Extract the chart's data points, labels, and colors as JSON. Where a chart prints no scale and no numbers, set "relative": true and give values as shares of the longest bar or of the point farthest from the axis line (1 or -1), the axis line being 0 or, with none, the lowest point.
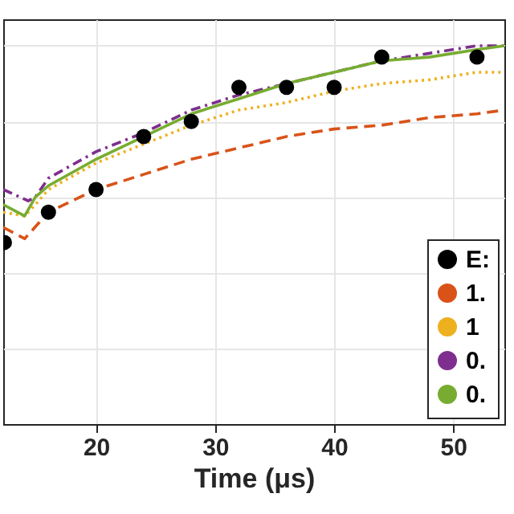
{
  "chart_data": {
    "type": "line",
    "xlabel": "Time (μs)",
    "relative": true,
    "xlim": [
      12.2,
      54.3
    ],
    "xticks": [
      20,
      30,
      40,
      50
    ],
    "grid": true,
    "legend": "bottom right",
    "series": [
      {
        "name": "E:",
        "type": "scatter",
        "marker": "circle",
        "color": "#000000",
        "x": [
          12.3,
          16,
          20,
          24,
          28,
          32,
          36,
          40,
          44,
          52
        ],
        "values": [
          0.48,
          0.56,
          0.62,
          0.76,
          0.8,
          0.89,
          0.89,
          0.89,
          0.97,
          0.97
        ]
      },
      {
        "name": "1.",
        "line_style": "dashed",
        "color": "#d95319",
        "x": [
          12.2,
          14,
          16,
          20,
          24,
          28,
          32,
          36,
          40,
          44,
          48,
          52,
          54.3
        ],
        "values": [
          0.52,
          0.49,
          0.56,
          0.62,
          0.66,
          0.7,
          0.73,
          0.76,
          0.78,
          0.79,
          0.81,
          0.82,
          0.83
        ]
      },
      {
        "name": "1",
        "line_style": "dotted",
        "color": "#edb120",
        "x": [
          12.2,
          14,
          14.9,
          16,
          20,
          24,
          28,
          32,
          36,
          40,
          44,
          48,
          52,
          54.3
        ],
        "values": [
          0.56,
          0.55,
          0.58,
          0.62,
          0.69,
          0.74,
          0.79,
          0.83,
          0.85,
          0.88,
          0.9,
          0.91,
          0.93,
          0.93
        ]
      },
      {
        "name": "0.",
        "line_style": "dashdot",
        "color": "#7e2f8e",
        "x": [
          12.2,
          14.3,
          14.9,
          16,
          20,
          24,
          28,
          32,
          36,
          40,
          44,
          48,
          52,
          54.3
        ],
        "values": [
          0.62,
          0.59,
          0.6,
          0.65,
          0.72,
          0.77,
          0.83,
          0.87,
          0.9,
          0.93,
          0.96,
          0.98,
          1.0,
          1.0
        ]
      },
      {
        "name": "0.",
        "line_style": "solid",
        "color": "#77ac30",
        "x": [
          12.2,
          14,
          14.9,
          16,
          20,
          24,
          28,
          32,
          36,
          40,
          44,
          48,
          52,
          54.3
        ],
        "values": [
          0.58,
          0.55,
          0.6,
          0.63,
          0.7,
          0.76,
          0.82,
          0.86,
          0.9,
          0.93,
          0.96,
          0.97,
          0.99,
          1.0
        ]
      }
    ]
  }
}
